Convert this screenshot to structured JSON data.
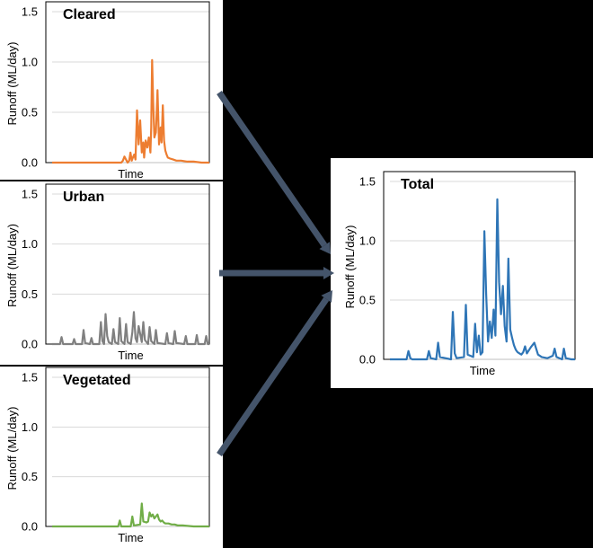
{
  "colors": {
    "cleared": "#ED7D31",
    "urban": "#808080",
    "vegetated": "#70AD47",
    "total": "#2E75B6",
    "arrow": "#44546A"
  },
  "chart_data": [
    {
      "id": "cleared",
      "type": "line",
      "title": "Cleared",
      "xlabel": "Time",
      "ylabel": "Runoff (ML/day)",
      "ylim": [
        0,
        1.5
      ],
      "yticks": [
        "0.0",
        "0.5",
        "1.0",
        "1.5"
      ],
      "xlim": [
        0,
        100
      ],
      "grid": true,
      "series": [
        {
          "color": "#ED7D31",
          "x": [
            0,
            44,
            45,
            46,
            48,
            49,
            49.8,
            50.6,
            51.4,
            52.2,
            53,
            54,
            55,
            56,
            57,
            58,
            58.5,
            59.5,
            60.5,
            61.5,
            62.5,
            63,
            63.6,
            64.3,
            65,
            66,
            67,
            68,
            69,
            69.6,
            70.4,
            71.2,
            72,
            72.8,
            73.6,
            75,
            77,
            79,
            82,
            86,
            90,
            95,
            100
          ],
          "y": [
            0,
            0,
            0.02,
            0.06,
            0,
            0.02,
            0.1,
            0.02,
            0.05,
            0.08,
            0.03,
            0.52,
            0.18,
            0.42,
            0.1,
            0.2,
            0.05,
            0.22,
            0.15,
            0.25,
            0.1,
            0.35,
            1.02,
            0.6,
            0.25,
            0.3,
            0.72,
            0.18,
            0.35,
            0.2,
            0.57,
            0.22,
            0.12,
            0.08,
            0.05,
            0.04,
            0.03,
            0.02,
            0.02,
            0.01,
            0.01,
            0,
            0
          ]
        }
      ]
    },
    {
      "id": "urban",
      "type": "line",
      "title": "Urban",
      "xlabel": "Time",
      "ylabel": "Runoff (ML/day)",
      "ylim": [
        0,
        1.5
      ],
      "yticks": [
        "0.0",
        "0.5",
        "1.0",
        "1.5"
      ],
      "xlim": [
        0,
        100
      ],
      "grid": true,
      "series": [
        {
          "color": "#808080",
          "x": [
            0,
            5,
            6,
            7,
            13,
            14,
            15,
            19,
            20,
            21,
            24,
            25,
            26,
            30,
            31,
            32,
            33,
            34,
            35,
            36,
            38,
            39,
            40,
            42,
            43,
            44,
            46,
            47,
            48,
            50,
            51,
            52,
            53,
            54,
            55,
            57,
            58,
            59,
            61,
            62,
            63,
            65,
            66,
            67,
            72,
            73,
            74,
            77,
            78,
            79,
            84,
            85,
            86,
            91,
            92,
            93,
            97,
            98,
            99,
            100
          ],
          "y": [
            0,
            0,
            0.07,
            0,
            0,
            0.05,
            0,
            0,
            0.14,
            0.01,
            0,
            0.06,
            0,
            0,
            0.22,
            0.03,
            0,
            0.3,
            0.08,
            0.02,
            0,
            0.15,
            0.02,
            0,
            0.26,
            0.03,
            0,
            0.2,
            0.02,
            0,
            0.12,
            0.32,
            0.06,
            0.02,
            0.18,
            0.02,
            0.22,
            0.04,
            0,
            0.17,
            0.03,
            0,
            0.14,
            0.01,
            0,
            0.11,
            0.01,
            0,
            0.13,
            0.01,
            0,
            0.08,
            0,
            0,
            0.09,
            0,
            0,
            0.08,
            0,
            0
          ]
        }
      ]
    },
    {
      "id": "vegetated",
      "type": "line",
      "title": "Vegetated",
      "xlabel": "Time",
      "ylabel": "Runoff (ML/day)",
      "ylim": [
        0,
        1.5
      ],
      "yticks": [
        "0.0",
        "0.5",
        "1.0",
        "1.5"
      ],
      "xlim": [
        0,
        100
      ],
      "grid": true,
      "series": [
        {
          "color": "#70AD47",
          "x": [
            0,
            42,
            43,
            44,
            50,
            51,
            52,
            56,
            57,
            58,
            60,
            61,
            62,
            63,
            64,
            65,
            66,
            67,
            68,
            69,
            70,
            71,
            72,
            74,
            76,
            78,
            80,
            83,
            86,
            90,
            95,
            100
          ],
          "y": [
            0,
            0,
            0.06,
            0,
            0,
            0.1,
            0.01,
            0.02,
            0.23,
            0.05,
            0.04,
            0.05,
            0.14,
            0.1,
            0.12,
            0.08,
            0.1,
            0.12,
            0.07,
            0.05,
            0.06,
            0.04,
            0.03,
            0.03,
            0.02,
            0.02,
            0.01,
            0.01,
            0.005,
            0,
            0,
            0
          ]
        }
      ]
    },
    {
      "id": "total",
      "type": "line",
      "title": "Total",
      "xlabel": "Time",
      "ylabel": "Runoff (ML/day)",
      "ylim": [
        0,
        1.5
      ],
      "yticks": [
        "0.0",
        "0.5",
        "1.0",
        "1.5"
      ],
      "xlim": [
        0,
        100
      ],
      "grid": true,
      "series": [
        {
          "color": "#2E75B6",
          "x": [
            0,
            9,
            10,
            11,
            12,
            20,
            21,
            22,
            25,
            26,
            27,
            33,
            34,
            35,
            36,
            40,
            41,
            42,
            45,
            46,
            47,
            48,
            49,
            50,
            51,
            52,
            53,
            54,
            55,
            56,
            57,
            58,
            59,
            60,
            61,
            62,
            63,
            64,
            65,
            66,
            67,
            68,
            69,
            70,
            71,
            72,
            73,
            74,
            76,
            78,
            80,
            82,
            85,
            88,
            89,
            90,
            93,
            94,
            95,
            98,
            99,
            100
          ],
          "y": [
            0,
            0,
            0.07,
            0.01,
            0,
            0,
            0.07,
            0.01,
            0,
            0.14,
            0.02,
            0,
            0.4,
            0.05,
            0.01,
            0.02,
            0.46,
            0.04,
            0.02,
            0.3,
            0.06,
            0.2,
            0.04,
            0.06,
            1.08,
            0.55,
            0.15,
            0.32,
            0.18,
            0.42,
            0.2,
            1.35,
            0.65,
            0.38,
            0.62,
            0.28,
            0.15,
            0.85,
            0.25,
            0.18,
            0.12,
            0.08,
            0.06,
            0.05,
            0.04,
            0.06,
            0.11,
            0.05,
            0.1,
            0.14,
            0.04,
            0.02,
            0.01,
            0.03,
            0.09,
            0.02,
            0,
            0.09,
            0.01,
            0,
            0,
            0
          ]
        }
      ]
    }
  ]
}
